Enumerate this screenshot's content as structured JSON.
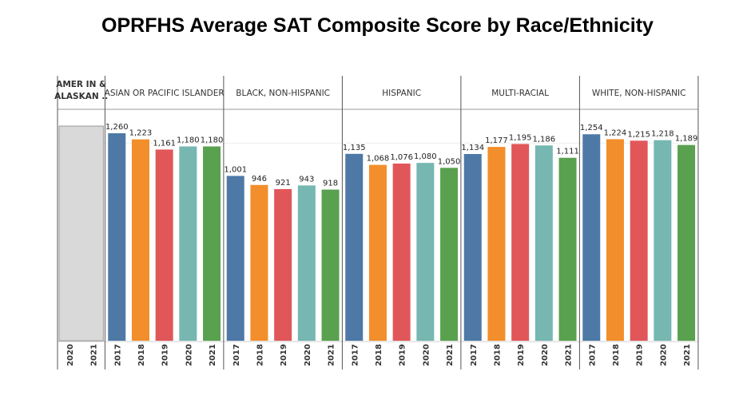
{
  "chart_data": {
    "type": "bar",
    "title": "OPRFHS Average SAT Composite Score by Race/Ethnicity",
    "xlabel": "",
    "ylabel": "",
    "ylim": [
      0,
      1400
    ],
    "grid": true,
    "colors": {
      "2017": "#4e79a7",
      "2018": "#f28e2b",
      "2019": "#e15759",
      "2020": "#76b7b2",
      "2021": "#59a14f",
      "no_data": "#d9d9d9"
    },
    "groups": [
      {
        "name": "AMER IN & ALASKAN ..",
        "name_lines": [
          "AMER IN &",
          "ALASKAN .."
        ],
        "years": [
          "2020",
          "2021"
        ],
        "values": [
          null,
          null
        ],
        "labels": [
          "",
          ""
        ]
      },
      {
        "name": "ASIAN OR PACIFIC ISLANDER",
        "years": [
          "2017",
          "2018",
          "2019",
          "2020",
          "2021"
        ],
        "values": [
          1260,
          1223,
          1161,
          1180,
          1180
        ],
        "labels": [
          "1,260",
          "1,223",
          "1,161",
          "1,180",
          "1,180"
        ]
      },
      {
        "name": "BLACK, NON-HISPANIC",
        "years": [
          "2017",
          "2018",
          "2019",
          "2020",
          "2021"
        ],
        "values": [
          1001,
          946,
          921,
          943,
          918
        ],
        "labels": [
          "1,001",
          "946",
          "921",
          "943",
          "918"
        ]
      },
      {
        "name": "HISPANIC",
        "years": [
          "2017",
          "2018",
          "2019",
          "2020",
          "2021"
        ],
        "values": [
          1135,
          1068,
          1076,
          1080,
          1050
        ],
        "labels": [
          "1,135",
          "1,068",
          "1,076",
          "1,080",
          "1,050"
        ]
      },
      {
        "name": "MULTI-RACIAL",
        "years": [
          "2017",
          "2018",
          "2019",
          "2020",
          "2021"
        ],
        "values": [
          1134,
          1177,
          1195,
          1186,
          1111
        ],
        "labels": [
          "1,134",
          "1,177",
          "1,195",
          "1,186",
          "1,111"
        ]
      },
      {
        "name": "WHITE, NON-HISPANIC",
        "years": [
          "2017",
          "2018",
          "2019",
          "2020",
          "2021"
        ],
        "values": [
          1254,
          1224,
          1215,
          1218,
          1189
        ],
        "labels": [
          "1,254",
          "1,224",
          "1,215",
          "1,218",
          "1,189"
        ]
      }
    ]
  }
}
